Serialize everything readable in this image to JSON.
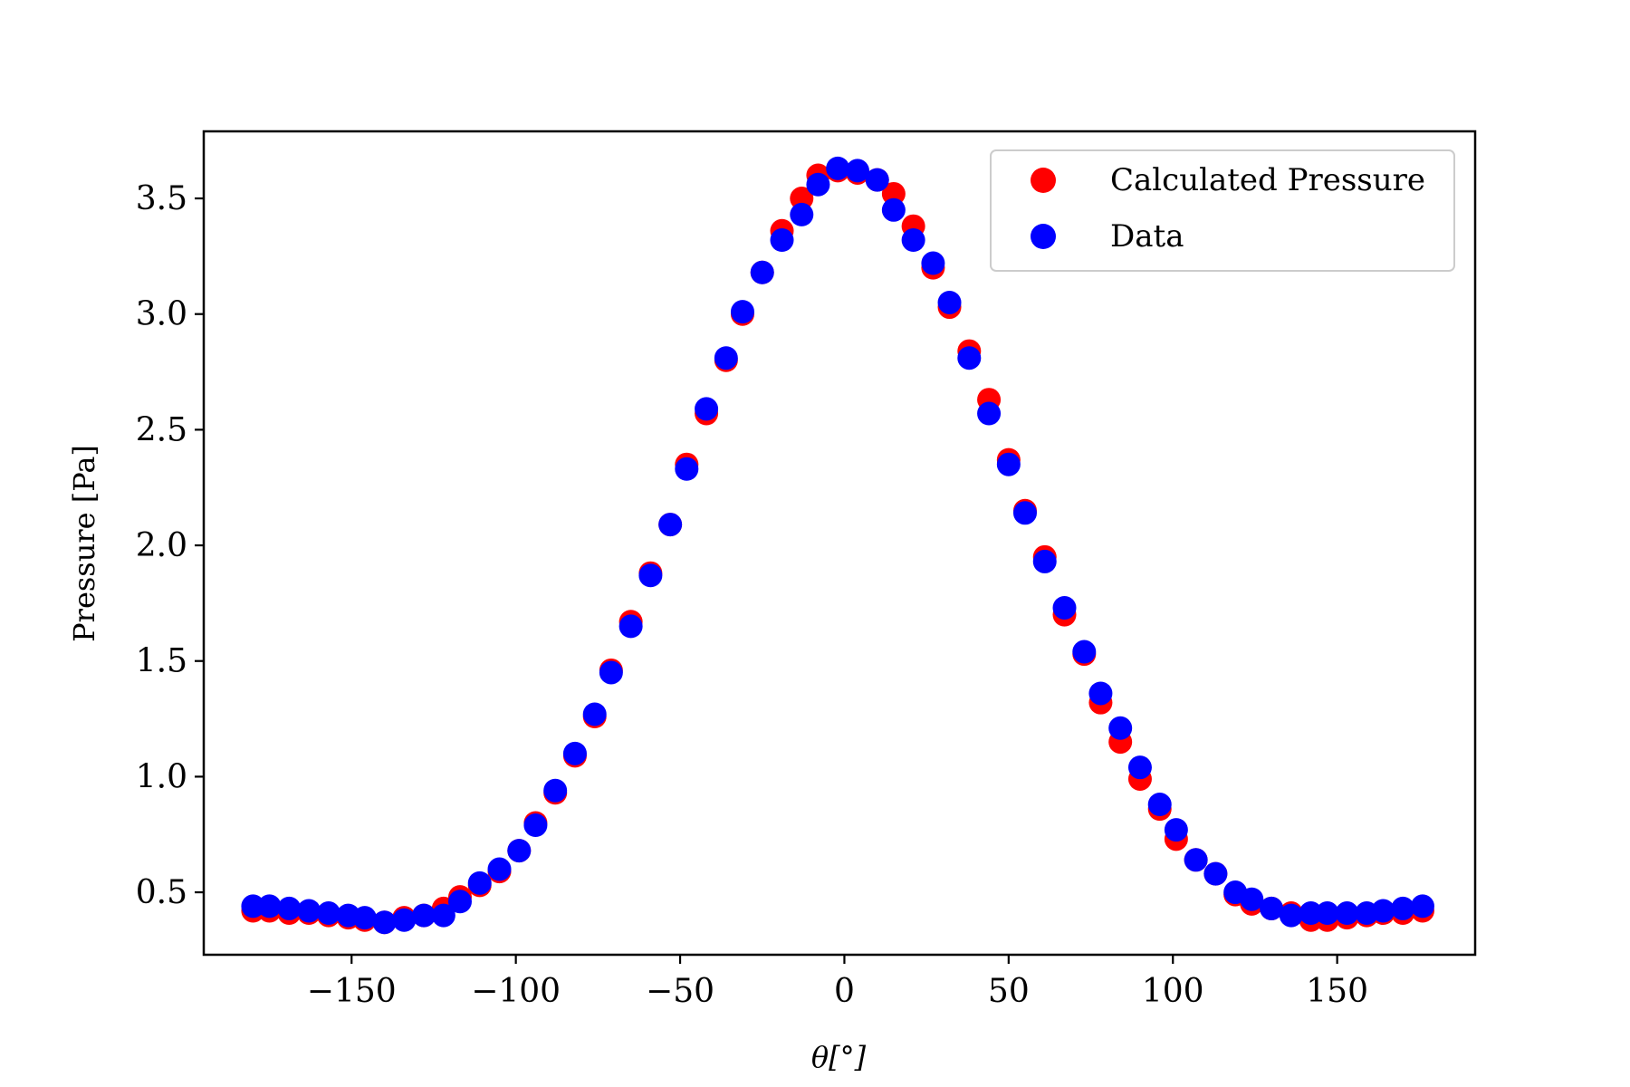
{
  "chart_data": {
    "type": "scatter",
    "xlabel": "θ[°]",
    "ylabel": "Pressure [Pa]",
    "xlim": [
      -195,
      192
    ],
    "ylim": [
      0.23,
      3.79
    ],
    "xticks": [
      -150,
      -100,
      -50,
      0,
      50,
      100,
      150
    ],
    "yticks": [
      0.5,
      1.0,
      1.5,
      2.0,
      2.5,
      3.0,
      3.5
    ],
    "xtick_labels": [
      "−150",
      "−100",
      "−50",
      "0",
      "50",
      "100",
      "150"
    ],
    "ytick_labels": [
      "0.5",
      "1.0",
      "1.5",
      "2.0",
      "2.5",
      "3.0",
      "3.5"
    ],
    "grid": false,
    "legend": "top-right",
    "x": [
      -180,
      -175,
      -169,
      -163,
      -157,
      -151,
      -146,
      -140,
      -134,
      -128,
      -122,
      -117,
      -111,
      -105,
      -99,
      -94,
      -88,
      -82,
      -76,
      -71,
      -65,
      -59,
      -53,
      -48,
      -42,
      -36,
      -31,
      -25,
      -19,
      -13,
      -8,
      -2,
      4,
      10,
      15,
      21,
      27,
      32,
      38,
      44,
      50,
      55,
      61,
      67,
      73,
      78,
      84,
      90,
      96,
      101,
      107,
      113,
      119,
      124,
      130,
      136,
      142,
      147,
      153,
      159,
      164,
      170,
      176
    ],
    "series": [
      {
        "name": "Calculated Pressure",
        "color": "#ff0000",
        "values": [
          0.42,
          0.42,
          0.41,
          0.41,
          0.4,
          0.39,
          0.38,
          0.37,
          0.39,
          0.4,
          0.43,
          0.48,
          0.53,
          0.59,
          0.68,
          0.8,
          0.93,
          1.09,
          1.26,
          1.46,
          1.67,
          1.88,
          2.09,
          2.35,
          2.57,
          2.8,
          3.0,
          3.18,
          3.36,
          3.5,
          3.6,
          3.62,
          3.61,
          3.58,
          3.52,
          3.38,
          3.2,
          3.03,
          2.84,
          2.63,
          2.37,
          2.15,
          1.95,
          1.7,
          1.53,
          1.32,
          1.15,
          0.99,
          0.86,
          0.73,
          0.64,
          0.58,
          0.49,
          0.45,
          0.43,
          0.41,
          0.38,
          0.38,
          0.39,
          0.4,
          0.41,
          0.41,
          0.42
        ]
      },
      {
        "name": "Data",
        "color": "#0000ff",
        "values": [
          0.44,
          0.44,
          0.43,
          0.42,
          0.41,
          0.4,
          0.39,
          0.37,
          0.38,
          0.4,
          0.4,
          0.46,
          0.54,
          0.6,
          0.68,
          0.79,
          0.94,
          1.1,
          1.27,
          1.45,
          1.65,
          1.87,
          2.09,
          2.33,
          2.59,
          2.81,
          3.01,
          3.18,
          3.32,
          3.43,
          3.56,
          3.63,
          3.62,
          3.58,
          3.45,
          3.32,
          3.22,
          3.05,
          2.81,
          2.57,
          2.35,
          2.14,
          1.93,
          1.73,
          1.54,
          1.36,
          1.21,
          1.04,
          0.88,
          0.77,
          0.64,
          0.58,
          0.5,
          0.47,
          0.43,
          0.4,
          0.41,
          0.41,
          0.41,
          0.41,
          0.42,
          0.43,
          0.44
        ]
      }
    ]
  }
}
